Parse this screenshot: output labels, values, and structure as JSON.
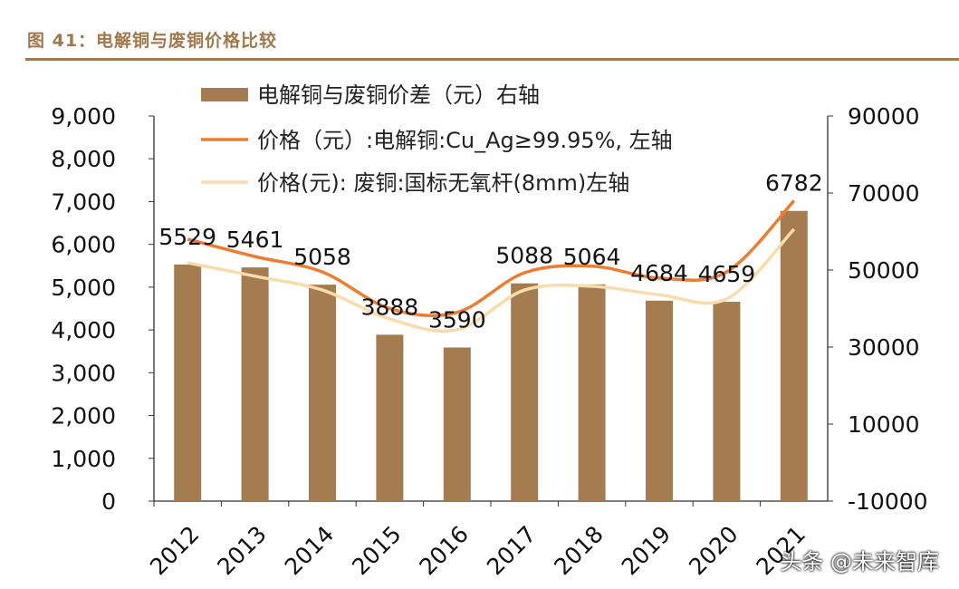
{
  "title": "图 41：电解铜与废铜价格比较",
  "watermark": "头条 @未来智库",
  "chart_data": {
    "type": "bar+line",
    "title": "图 41：电解铜与废铜价格比较",
    "categories": [
      "2012",
      "2013",
      "2014",
      "2015",
      "2016",
      "2017",
      "2018",
      "2019",
      "2020",
      "2021"
    ],
    "left_axis": {
      "range": [
        0,
        9000
      ],
      "ticks": [
        "0",
        "1,000",
        "2,000",
        "3,000",
        "4,000",
        "5,000",
        "6,000",
        "7,000",
        "8,000",
        "9,000"
      ]
    },
    "right_axis": {
      "range": [
        -10000,
        90000
      ],
      "ticks": [
        "-10000",
        "10000",
        "30000",
        "50000",
        "70000",
        "90000"
      ]
    },
    "grid": false,
    "legend_position": "top",
    "series": [
      {
        "name": "电解铜与废铜价差（元）右轴",
        "kind": "bar",
        "axis": "left",
        "color": "#a57c4f",
        "values": [
          5529,
          5461,
          5058,
          3888,
          3590,
          5088,
          5064,
          4684,
          4659,
          6782
        ],
        "labels": [
          "5529",
          "5461",
          "5058",
          "3888",
          "3590",
          "5088",
          "5064",
          "4684",
          "4659",
          "6782"
        ]
      },
      {
        "name": "价格（元）:电解铜:Cu_Ag≥99.95%, 左轴",
        "kind": "line",
        "axis": "right",
        "color": "#ed7d31",
        "values": [
          58000,
          53500,
          49500,
          40000,
          39000,
          49300,
          51000,
          47900,
          49500,
          68000
        ]
      },
      {
        "name": "价格(元): 废铜:国标无氧杆(8mm)左轴",
        "kind": "line",
        "axis": "right",
        "color": "#f8dcae",
        "values": [
          51900,
          48400,
          44800,
          37300,
          34500,
          44800,
          45800,
          43600,
          42500,
          60600
        ]
      }
    ]
  }
}
